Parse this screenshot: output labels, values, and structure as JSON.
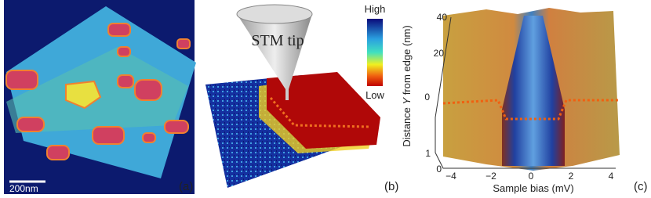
{
  "panels": [
    {
      "label": "(a)",
      "scale_bar": "200nm"
    },
    {
      "label": "(b)",
      "tip": "STM tip",
      "colorbar": {
        "high": "High",
        "low": "Low"
      }
    },
    {
      "label": "(c)",
      "y_axis": {
        "title_prefix": "Distance ",
        "title_var": "Y",
        "title_suffix": " from edge (nm)",
        "ticks": [
          "40",
          "20",
          "0"
        ]
      },
      "depth_axis": {
        "ticks": [
          "1",
          "0"
        ]
      },
      "x_axis": {
        "title": "Sample bias (mV)",
        "ticks": [
          "−4",
          "−2",
          "0",
          "2",
          "4"
        ]
      }
    }
  ]
}
